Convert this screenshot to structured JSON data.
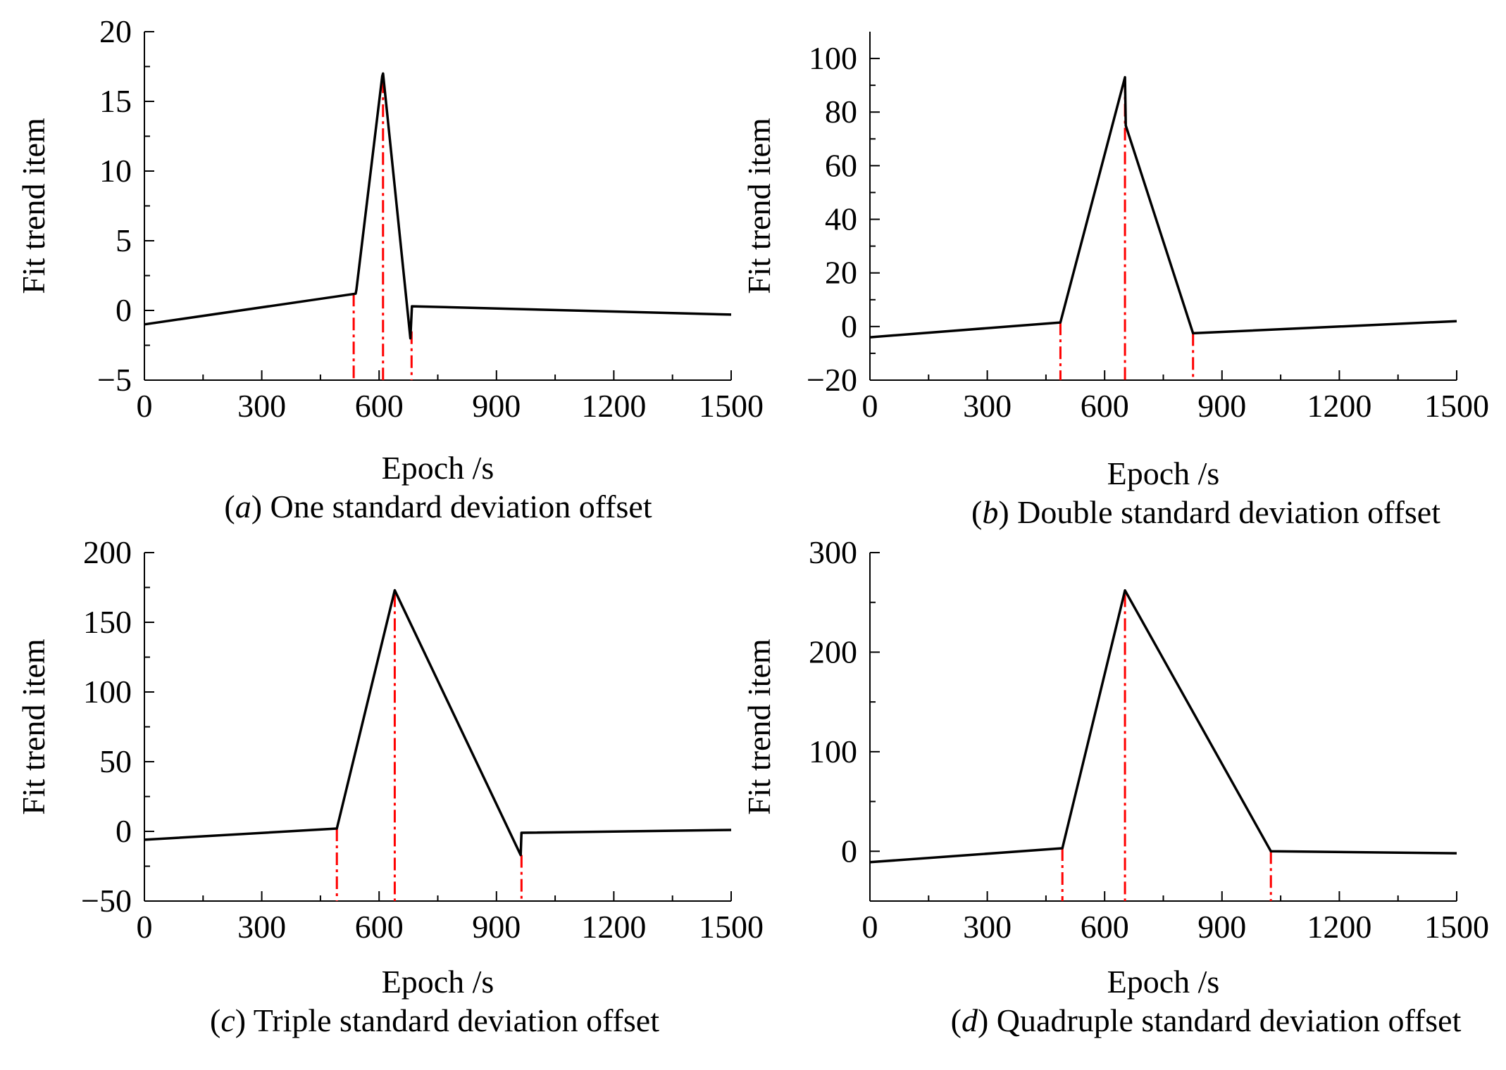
{
  "colors": {
    "line": "#000000",
    "marker": "#ff0000",
    "background": "#ffffff"
  },
  "chart_data": [
    {
      "type": "line",
      "caption": {
        "letter": "a",
        "text": " One standard deviation offset"
      },
      "xlabel": "Epoch /s",
      "ylabel": "Fit trend item",
      "xlim": [
        0,
        1500
      ],
      "ylim": [
        -5,
        20
      ],
      "xticks": [
        0,
        300,
        600,
        900,
        1200,
        1500
      ],
      "yticks": [
        -5,
        0,
        5,
        10,
        15,
        20
      ],
      "ytick_labels": [
        "−5",
        "0",
        "5",
        "10",
        "15",
        "20"
      ],
      "xminor": 150,
      "yminor": 2.5,
      "series": [
        {
          "name": "Fit trend item",
          "x": [
            0,
            540,
            542,
            608,
            610,
            680,
            684,
            1500
          ],
          "y": [
            -1,
            1.2,
            1.5,
            16.8,
            17,
            -2,
            0.3,
            -0.3
          ]
        }
      ],
      "markers": [
        {
          "x": 535,
          "y_top": 1.2
        },
        {
          "x": 610,
          "y_top": 16.5
        },
        {
          "x": 683,
          "y_top": -1.5
        }
      ]
    },
    {
      "type": "line",
      "caption": {
        "letter": "b",
        "text": " Double standard deviation offset"
      },
      "xlabel": "Epoch /s",
      "ylabel": "Fit trend item",
      "xlim": [
        0,
        1500
      ],
      "ylim": [
        -20,
        110
      ],
      "xticks": [
        0,
        300,
        600,
        900,
        1200,
        1500
      ],
      "yticks": [
        -20,
        0,
        20,
        40,
        60,
        80,
        100
      ],
      "ytick_labels": [
        "−20",
        "0",
        "20",
        "40",
        "60",
        "80",
        "100"
      ],
      "xminor": 150,
      "yminor": 10,
      "series": [
        {
          "name": "Fit trend item",
          "x": [
            0,
            487,
            652,
            654,
            826,
            1500
          ],
          "y": [
            -4,
            1.5,
            93,
            75,
            -2.5,
            2
          ]
        }
      ],
      "markers": [
        {
          "x": 487,
          "y_top": 1.5
        },
        {
          "x": 652,
          "y_top": 92
        },
        {
          "x": 826,
          "y_top": -2.5
        }
      ]
    },
    {
      "type": "line",
      "caption": {
        "letter": "c",
        "text": " Triple standard deviation offset"
      },
      "xlabel": "Epoch /s",
      "ylabel": "Fit trend item",
      "xlim": [
        0,
        1500
      ],
      "ylim": [
        -50,
        200
      ],
      "xticks": [
        0,
        300,
        600,
        900,
        1200,
        1500
      ],
      "yticks": [
        -50,
        0,
        50,
        100,
        150,
        200
      ],
      "ytick_labels": [
        "−50",
        "0",
        "50",
        "100",
        "150",
        "200"
      ],
      "xminor": 150,
      "yminor": 25,
      "series": [
        {
          "name": "Fit trend item",
          "x": [
            0,
            492,
            640,
            962,
            964,
            1500
          ],
          "y": [
            -6,
            2,
            173,
            -17,
            -1,
            1
          ]
        }
      ],
      "markers": [
        {
          "x": 492,
          "y_top": 2
        },
        {
          "x": 640,
          "y_top": 170
        },
        {
          "x": 964,
          "y_top": -17
        }
      ]
    },
    {
      "type": "line",
      "caption": {
        "letter": "d",
        "text": " Quadruple standard deviation offset"
      },
      "xlabel": "Epoch /s",
      "ylabel": "Fit trend item",
      "xlim": [
        0,
        1500
      ],
      "ylim": [
        -50,
        300
      ],
      "xticks": [
        0,
        300,
        600,
        900,
        1200,
        1500
      ],
      "yticks": [
        0,
        100,
        200,
        300
      ],
      "ytick_labels": [
        "0",
        "100",
        "200",
        "300"
      ],
      "xminor": 150,
      "yminor": 50,
      "series": [
        {
          "name": "Fit trend item",
          "x": [
            0,
            492,
            652,
            1025,
            1500
          ],
          "y": [
            -11,
            3,
            262,
            0,
            -2
          ]
        }
      ],
      "markers": [
        {
          "x": 492,
          "y_top": 3
        },
        {
          "x": 652,
          "y_top": 258
        },
        {
          "x": 1025,
          "y_top": 0
        }
      ]
    }
  ]
}
